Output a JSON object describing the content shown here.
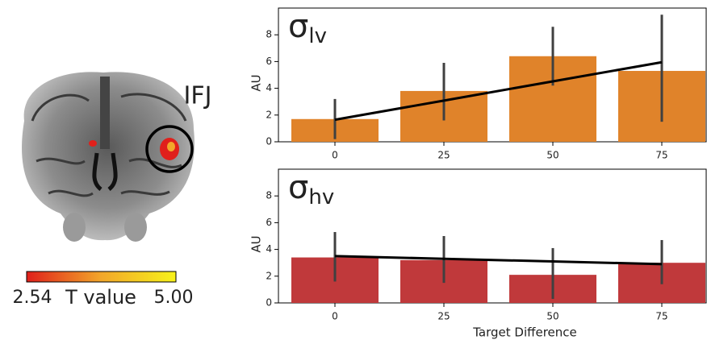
{
  "brain_panel": {
    "region_label": "IFJ",
    "colorbar": {
      "title": "T value",
      "ticks": [
        2.54,
        {
          "value": 5,
          "label": "5.00"
        }
      ],
      "colors": [
        "#e0201b",
        "#f2a72a",
        "#f7f21a"
      ]
    }
  },
  "chart_data": [
    {
      "type": "bar",
      "title": "σ",
      "title_subscript": "lv",
      "ylabel": "AU",
      "categories": [
        "0",
        "25",
        "50",
        "75"
      ],
      "values": [
        1.7,
        3.8,
        6.4,
        5.3
      ],
      "ci_low": [
        0.2,
        1.6,
        4.2,
        1.5
      ],
      "ci_high": [
        3.2,
        5.9,
        8.6,
        9.5
      ],
      "trend": {
        "color": "#000000",
        "values": [
          1.65,
          3.08,
          4.52,
          5.95
        ]
      },
      "color": "#e0832a",
      "ylim": [
        0,
        10
      ],
      "yticks": [
        0,
        2,
        4,
        6,
        8
      ]
    },
    {
      "type": "bar",
      "title": "σ",
      "title_subscript": "hv",
      "ylabel": "AU",
      "xlabel": "Target Difference",
      "categories": [
        "0",
        "25",
        "50",
        "75"
      ],
      "values": [
        3.4,
        3.2,
        2.1,
        3.0
      ],
      "ci_low": [
        1.6,
        1.5,
        0.3,
        1.4
      ],
      "ci_high": [
        5.3,
        5.0,
        4.1,
        4.7
      ],
      "trend": {
        "color": "#000000",
        "values": [
          3.5,
          3.3,
          3.1,
          2.9
        ]
      },
      "color": "#c0393b",
      "ylim": [
        0,
        10
      ],
      "yticks": [
        0,
        2,
        4,
        6,
        8
      ]
    }
  ]
}
